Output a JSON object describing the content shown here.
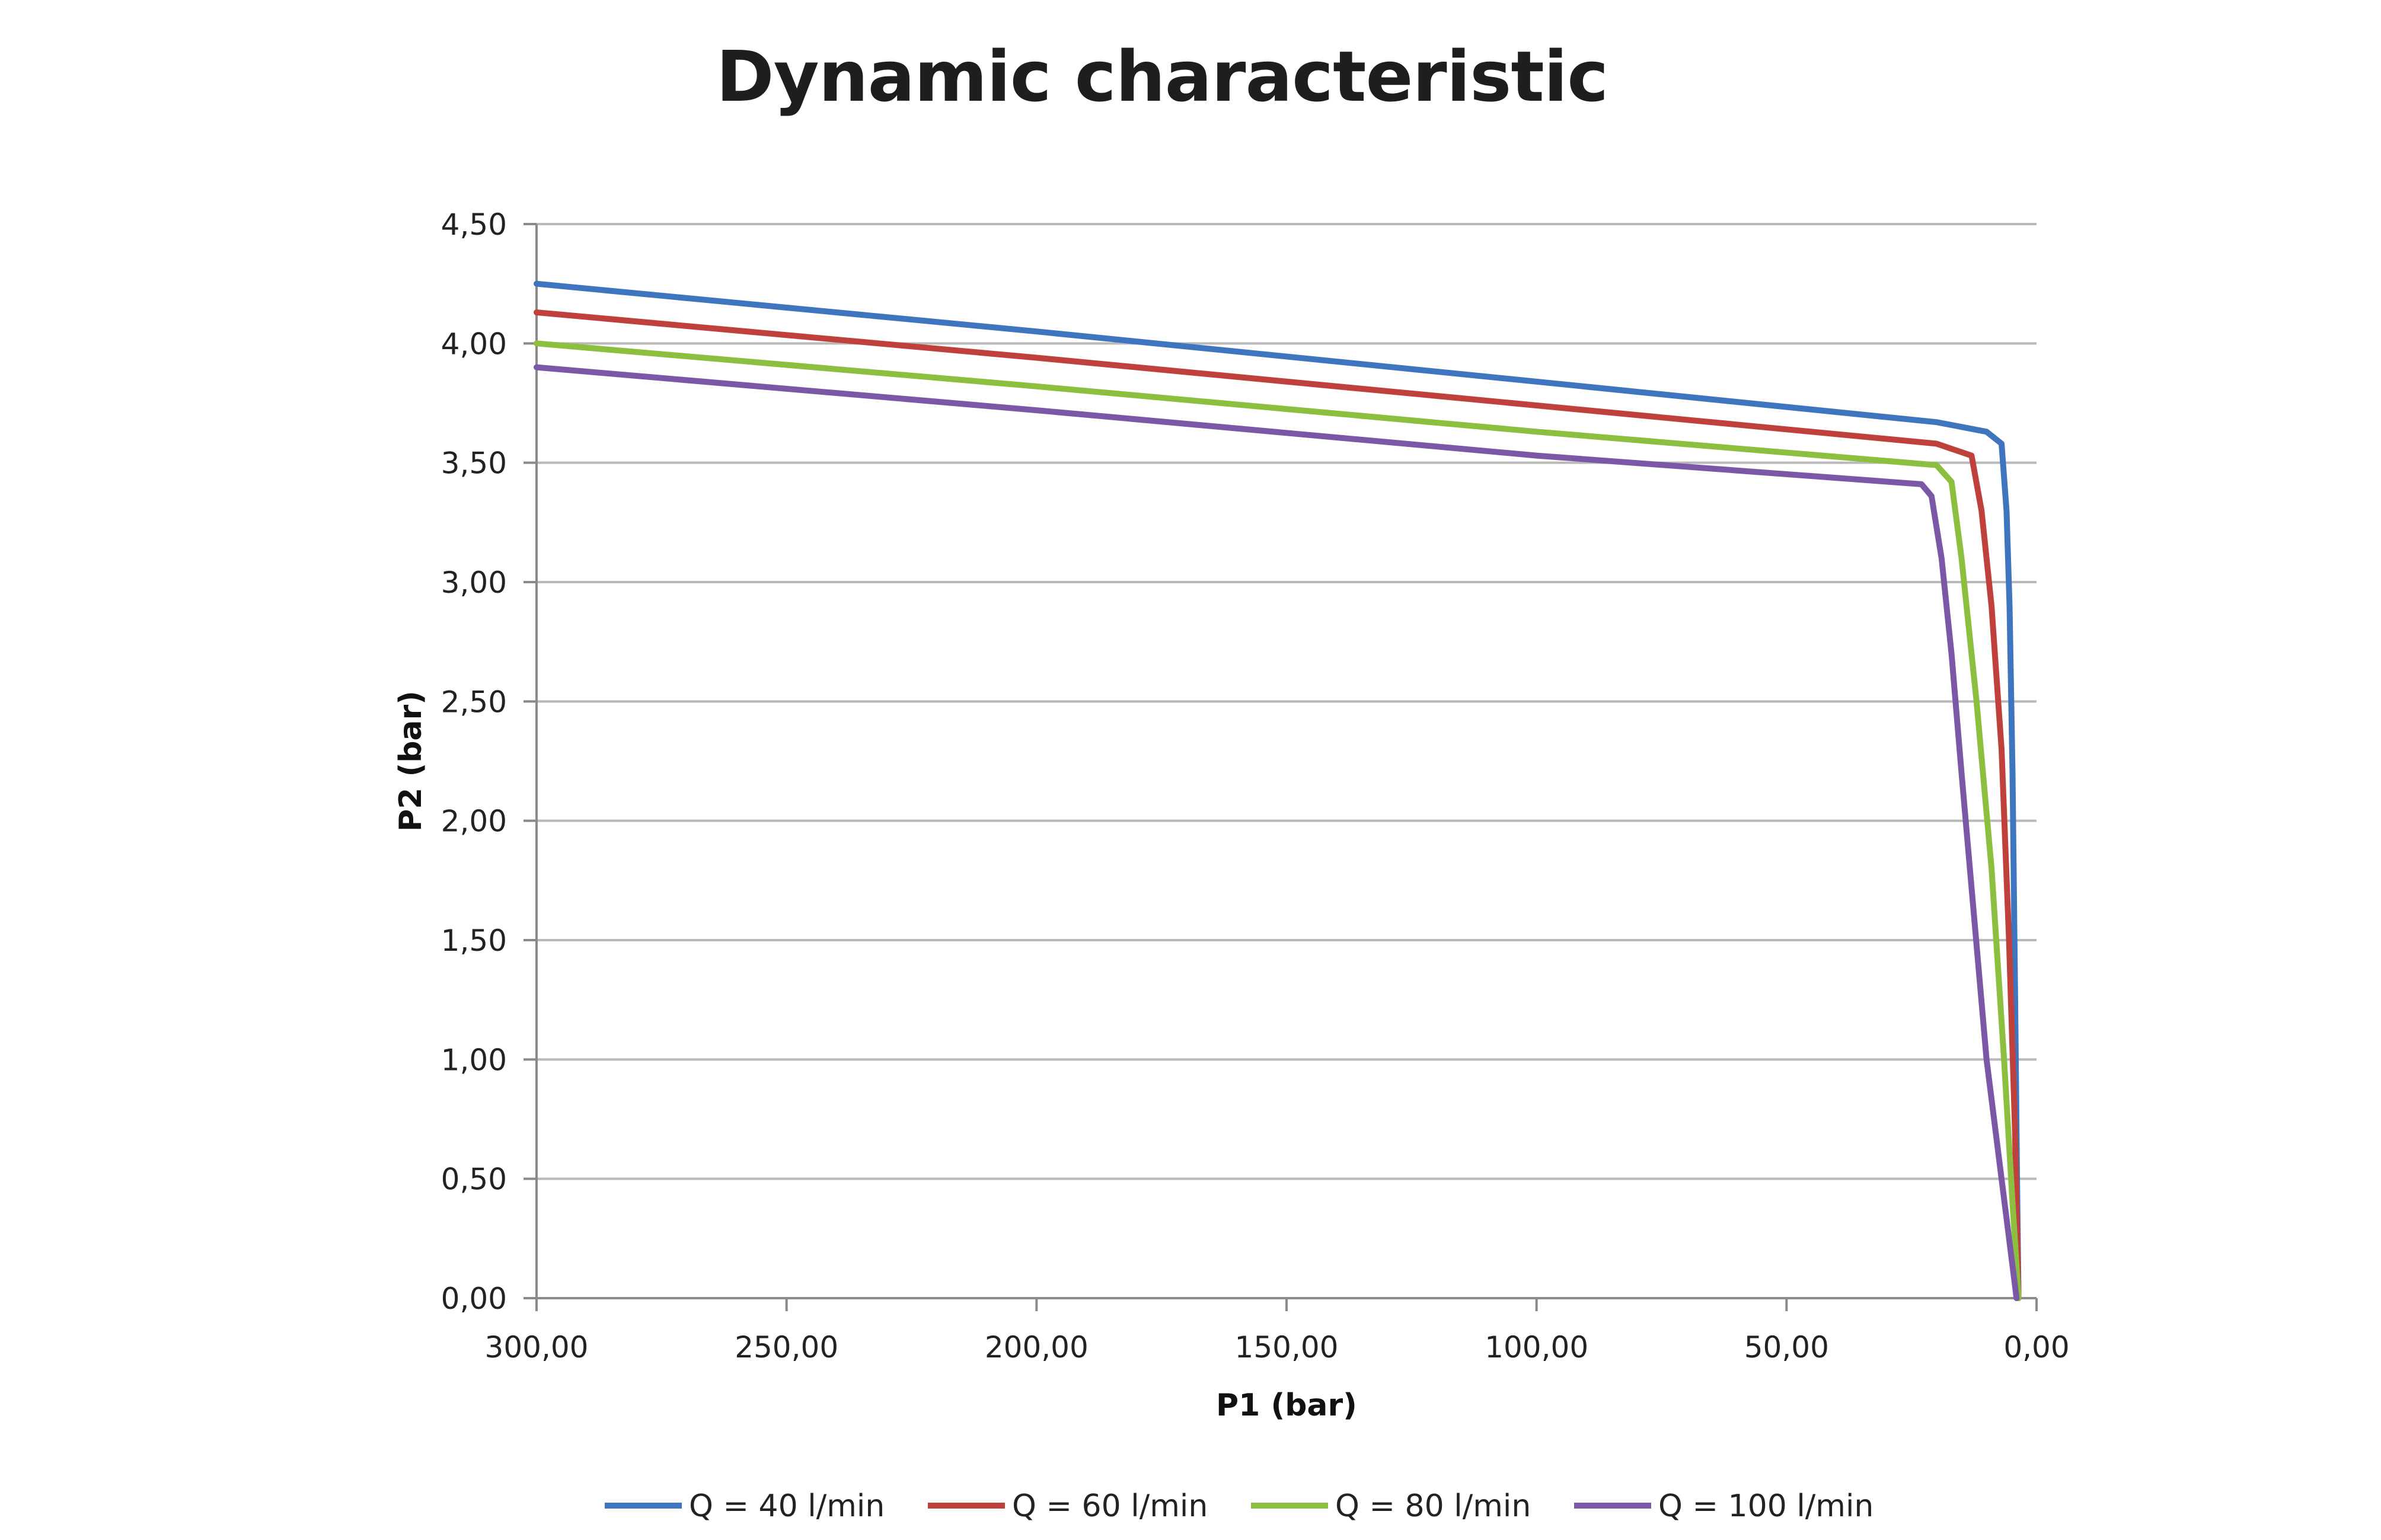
{
  "chart_data": {
    "type": "line",
    "title": "Dynamic characteristic",
    "xlabel": "P1 (bar)",
    "ylabel": "P2 (bar)",
    "xlim": [
      300,
      0
    ],
    "ylim": [
      0,
      4.5
    ],
    "x_reversed": true,
    "grid": "horizontal",
    "legend_placement": "bottom",
    "x_ticks": [
      "300,00",
      "250,00",
      "200,00",
      "150,00",
      "100,00",
      "50,00",
      "0,00"
    ],
    "y_ticks": [
      "0,00",
      "0,50",
      "1,00",
      "1,50",
      "2,00",
      "2,50",
      "3,00",
      "3,50",
      "4,00",
      "4,50"
    ],
    "series": [
      {
        "name": "Q = 40 l/min",
        "color": "#3f74bf",
        "points": [
          [
            300,
            4.25
          ],
          [
            200,
            4.05
          ],
          [
            100,
            3.84
          ],
          [
            20,
            3.67
          ],
          [
            10,
            3.63
          ],
          [
            7,
            3.58
          ],
          [
            6,
            3.3
          ],
          [
            5.4,
            2.9
          ],
          [
            4.8,
            2.2
          ],
          [
            4.3,
            1.3
          ],
          [
            3.9,
            0.5
          ],
          [
            3.6,
            0.0
          ]
        ]
      },
      {
        "name": "Q = 60 l/min",
        "color": "#c0413c",
        "points": [
          [
            300,
            4.13
          ],
          [
            200,
            3.94
          ],
          [
            100,
            3.74
          ],
          [
            20,
            3.58
          ],
          [
            13,
            3.53
          ],
          [
            11,
            3.3
          ],
          [
            9,
            2.9
          ],
          [
            7,
            2.3
          ],
          [
            5.5,
            1.5
          ],
          [
            4.3,
            0.7
          ],
          [
            3.6,
            0.0
          ]
        ]
      },
      {
        "name": "Q = 80 l/min",
        "color": "#8cbf3f",
        "points": [
          [
            300,
            4.0
          ],
          [
            200,
            3.82
          ],
          [
            100,
            3.63
          ],
          [
            20,
            3.49
          ],
          [
            17,
            3.42
          ],
          [
            15,
            3.1
          ],
          [
            12,
            2.5
          ],
          [
            9,
            1.8
          ],
          [
            6.5,
            1.0
          ],
          [
            4.8,
            0.4
          ],
          [
            3.6,
            0.0
          ]
        ]
      },
      {
        "name": "Q = 100 l/min",
        "color": "#7b58a6",
        "points": [
          [
            300,
            3.9
          ],
          [
            200,
            3.72
          ],
          [
            100,
            3.53
          ],
          [
            23,
            3.41
          ],
          [
            21,
            3.36
          ],
          [
            19,
            3.1
          ],
          [
            17,
            2.7
          ],
          [
            15,
            2.2
          ],
          [
            12.5,
            1.6
          ],
          [
            10,
            1.0
          ],
          [
            7,
            0.5
          ],
          [
            4,
            0.0
          ]
        ]
      }
    ]
  }
}
